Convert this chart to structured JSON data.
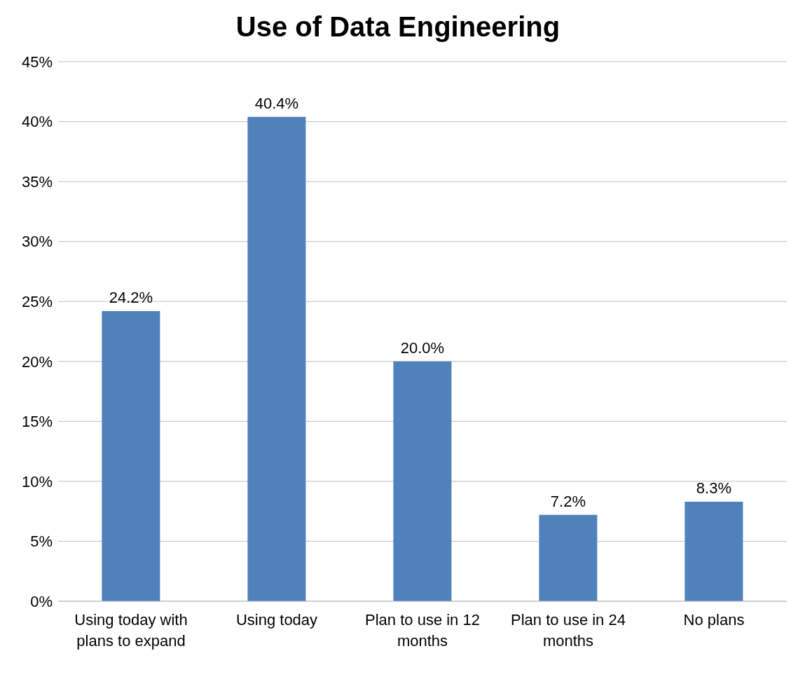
{
  "chart_data": {
    "type": "bar",
    "title": "Use of Data Engineering",
    "categories": [
      "Using today with plans to expand",
      "Using today",
      "Plan to use in 12 months",
      "Plan to use in 24 months",
      "No plans"
    ],
    "values": [
      24.2,
      40.4,
      20.0,
      7.2,
      8.3
    ],
    "value_labels": [
      "24.2%",
      "40.4%",
      "20.0%",
      "7.2%",
      "8.3%"
    ],
    "color": "#4f81bd",
    "ylim": [
      0,
      45
    ],
    "yticks": [
      {
        "value": 0,
        "label": "0%"
      },
      {
        "value": 5,
        "label": "5%"
      },
      {
        "value": 10,
        "label": "10%"
      },
      {
        "value": 15,
        "label": "15%"
      },
      {
        "value": 20,
        "label": "20%"
      },
      {
        "value": 25,
        "label": "25%"
      },
      {
        "value": 30,
        "label": "30%"
      },
      {
        "value": 35,
        "label": "35%"
      },
      {
        "value": 40,
        "label": "40%"
      },
      {
        "value": 45,
        "label": "45%"
      }
    ],
    "grid": "y",
    "legend": false
  }
}
